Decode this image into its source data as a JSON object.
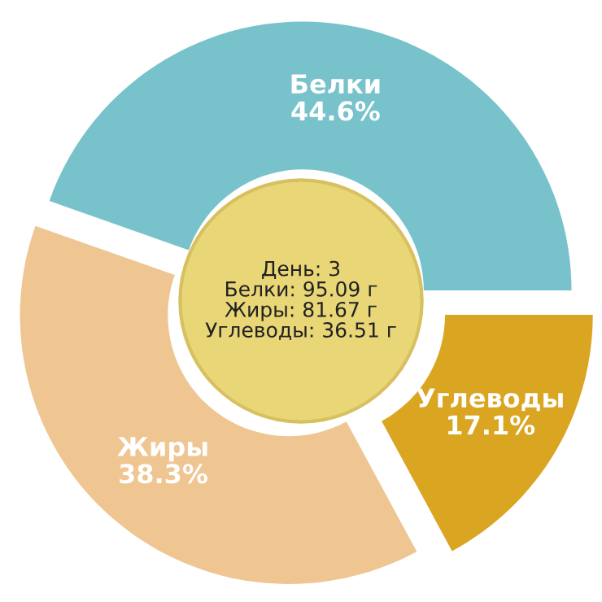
{
  "chart_data": {
    "type": "donut",
    "categories": [
      "Белки",
      "Жиры",
      "Углеводы"
    ],
    "values": [
      44.6,
      38.3,
      17.1
    ],
    "colors": [
      "#78c3cb",
      "#efc592",
      "#daa521"
    ],
    "value_labels": [
      "44.6%",
      "38.3%",
      "17.1%"
    ],
    "annotations": [
      "День: 3",
      "Белки: 95.09 г",
      "Жиры: 81.67 г",
      "Углеводы: 36.51 г"
    ],
    "legend": false
  }
}
